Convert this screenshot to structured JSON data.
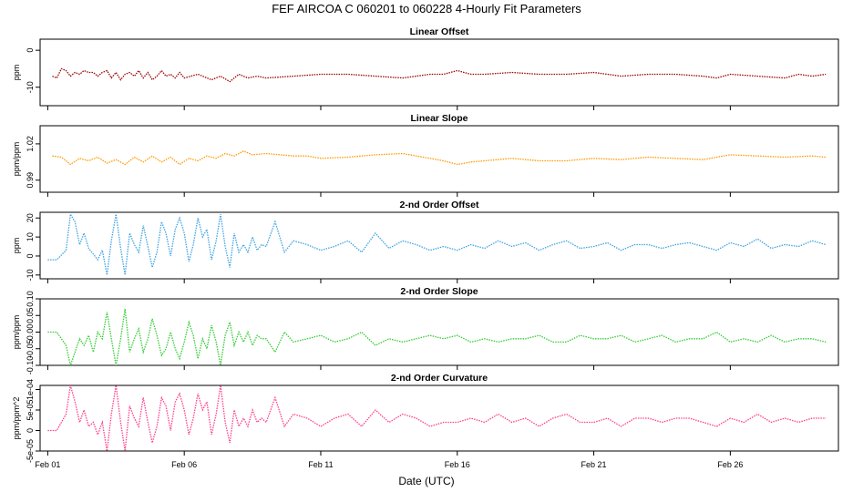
{
  "title": "FEF   AIRCOA C   060201 to 060228   4-Hourly Fit Parameters",
  "xlabel": "Date (UTC)",
  "x_ticks": [
    {
      "label": "Feb 01",
      "day": 1
    },
    {
      "label": "Feb 06",
      "day": 6
    },
    {
      "label": "Feb 11",
      "day": 11
    },
    {
      "label": "Feb 16",
      "day": 16
    },
    {
      "label": "Feb 21",
      "day": 21
    },
    {
      "label": "Feb 26",
      "day": 26
    }
  ],
  "chart_data": [
    {
      "type": "line",
      "title": "Linear Offset",
      "ylabel": "ppm",
      "ylim": [
        -15,
        3
      ],
      "yticks": [
        0,
        -10
      ],
      "ytick_labels": [
        "0",
        "-10"
      ],
      "color": "#9b0000",
      "series": [
        {
          "name": "Linear Offset",
          "x_days": [
            1.17,
            1.33,
            1.5,
            1.67,
            1.83,
            2.0,
            2.17,
            2.33,
            2.5,
            2.67,
            2.83,
            3.0,
            3.17,
            3.33,
            3.5,
            3.67,
            3.83,
            4.0,
            4.17,
            4.33,
            4.5,
            4.67,
            4.83,
            5.0,
            5.17,
            5.33,
            5.5,
            5.67,
            5.83,
            6.0,
            6.5,
            7.0,
            7.33,
            7.67,
            8.0,
            8.33,
            8.67,
            9.0,
            10.0,
            11.0,
            12.0,
            13.0,
            14.0,
            15.0,
            15.5,
            16.0,
            16.5,
            17.0,
            18.0,
            19.0,
            20.0,
            21.0,
            22.0,
            23.0,
            24.0,
            25.0,
            25.5,
            26.0,
            27.0,
            28.0,
            28.5,
            29.0,
            29.5
          ],
          "values": [
            -7,
            -7.5,
            -5,
            -5.5,
            -7,
            -6,
            -6.5,
            -5.5,
            -6,
            -6,
            -7,
            -6,
            -5.5,
            -7.5,
            -6,
            -8,
            -6.5,
            -6,
            -7,
            -5.5,
            -7.5,
            -6,
            -8,
            -7,
            -5.5,
            -7,
            -6.5,
            -7.5,
            -6,
            -7.5,
            -6.5,
            -8,
            -7,
            -8.5,
            -6.5,
            -7.5,
            -7,
            -7.5,
            -7,
            -6.5,
            -6.5,
            -7,
            -7.5,
            -6.5,
            -6.5,
            -5.5,
            -6.5,
            -6.5,
            -6,
            -6.5,
            -6.5,
            -6,
            -7,
            -6.5,
            -6.5,
            -7,
            -7.5,
            -6.5,
            -7,
            -7.5,
            -6.5,
            -7,
            -6.5
          ]
        }
      ]
    },
    {
      "type": "line",
      "title": "Linear Slope",
      "ylabel": "ppm/ppm",
      "ylim": [
        0.98,
        1.035
      ],
      "yticks": [
        0.99,
        1.02
      ],
      "ytick_labels": [
        "0.99",
        "1.02"
      ],
      "color": "#ff9900",
      "series": [
        {
          "name": "Linear Slope",
          "x_days": [
            1.17,
            1.5,
            1.83,
            2.17,
            2.5,
            2.83,
            3.17,
            3.5,
            3.83,
            4.17,
            4.5,
            4.83,
            5.17,
            5.5,
            5.83,
            6.17,
            6.5,
            6.83,
            7.17,
            7.5,
            7.83,
            8.17,
            8.5,
            9.0,
            10.0,
            10.5,
            11.0,
            12.0,
            13.0,
            14.0,
            15.0,
            15.5,
            16.0,
            16.5,
            17.0,
            18.0,
            19.0,
            20.0,
            21.0,
            22.0,
            23.0,
            24.0,
            25.0,
            26.0,
            27.0,
            28.0,
            29.0,
            29.5
          ],
          "values": [
            1.01,
            1.009,
            1.003,
            1.008,
            1.006,
            1.009,
            1.004,
            1.007,
            1.003,
            1.009,
            1.005,
            1.01,
            1.005,
            1.009,
            1.003,
            1.008,
            1.006,
            1.01,
            1.008,
            1.012,
            1.01,
            1.014,
            1.011,
            1.012,
            1.01,
            1.01,
            1.008,
            1.009,
            1.011,
            1.012,
            1.008,
            1.006,
            1.003,
            1.005,
            1.006,
            1.008,
            1.006,
            1.006,
            1.008,
            1.007,
            1.009,
            1.008,
            1.007,
            1.011,
            1.01,
            1.009,
            1.01,
            1.009
          ]
        }
      ]
    },
    {
      "type": "line",
      "title": "2-nd Order Offset",
      "ylabel": "ppm",
      "ylim": [
        -12,
        23
      ],
      "yticks": [
        20,
        10,
        0,
        -10
      ],
      "ytick_labels": [
        "20",
        "10",
        "0",
        "-10"
      ],
      "color": "#3fa3e0",
      "series": [
        {
          "name": "2-nd Order Offset",
          "x_days": [
            1.0,
            1.33,
            1.67,
            1.83,
            2.0,
            2.17,
            2.33,
            2.5,
            2.67,
            2.83,
            3.0,
            3.17,
            3.33,
            3.5,
            3.67,
            3.83,
            4.0,
            4.17,
            4.33,
            4.5,
            4.67,
            4.83,
            5.0,
            5.17,
            5.33,
            5.5,
            5.67,
            5.83,
            6.0,
            6.17,
            6.33,
            6.5,
            6.67,
            6.83,
            7.0,
            7.17,
            7.33,
            7.5,
            7.67,
            7.83,
            8.0,
            8.17,
            8.33,
            8.5,
            8.67,
            8.83,
            9.0,
            9.33,
            9.67,
            10.0,
            10.5,
            11.0,
            11.5,
            12.0,
            12.5,
            13.0,
            13.5,
            14.0,
            14.5,
            15.0,
            15.5,
            16.0,
            16.5,
            17.0,
            17.5,
            18.0,
            18.5,
            19.0,
            19.5,
            20.0,
            20.5,
            21.0,
            21.5,
            22.0,
            22.5,
            23.0,
            23.5,
            24.0,
            24.5,
            25.0,
            25.5,
            26.0,
            26.5,
            27.0,
            27.5,
            28.0,
            28.5,
            29.0,
            29.5
          ],
          "values": [
            -2,
            -2,
            3,
            22,
            18,
            6,
            12,
            4,
            1,
            -2,
            3,
            -10,
            8,
            22,
            4,
            -10,
            12,
            6,
            2,
            16,
            5,
            -6,
            2,
            18,
            12,
            0,
            14,
            20,
            12,
            -3,
            6,
            20,
            10,
            14,
            -2,
            8,
            22,
            5,
            -6,
            12,
            2,
            6,
            2,
            10,
            3,
            6,
            5,
            18,
            2,
            8,
            6,
            3,
            5,
            8,
            2,
            12,
            4,
            8,
            6,
            3,
            5,
            3,
            6,
            4,
            8,
            5,
            7,
            3,
            6,
            8,
            4,
            5,
            7,
            3,
            6,
            6,
            4,
            6,
            7,
            5,
            3,
            7,
            5,
            9,
            4,
            6,
            5,
            8,
            6
          ]
        }
      ]
    },
    {
      "type": "line",
      "title": "2-nd Order Slope",
      "ylabel": "ppm/ppm",
      "ylim": [
        -0.1,
        0.1
      ],
      "yticks": [
        0.1,
        0.05,
        0.0,
        -0.05,
        -0.1
      ],
      "ytick_labels": [
        "0.10",
        "0.05",
        "0.00",
        "-0.05",
        "-0.10"
      ],
      "color": "#33cc33",
      "series": [
        {
          "name": "2-nd Order Slope",
          "x_days": [
            1.0,
            1.33,
            1.67,
            1.83,
            2.0,
            2.17,
            2.33,
            2.5,
            2.67,
            2.83,
            3.0,
            3.17,
            3.33,
            3.5,
            3.67,
            3.83,
            4.0,
            4.17,
            4.33,
            4.5,
            4.67,
            4.83,
            5.0,
            5.17,
            5.33,
            5.5,
            5.67,
            5.83,
            6.0,
            6.17,
            6.33,
            6.5,
            6.67,
            6.83,
            7.0,
            7.17,
            7.33,
            7.5,
            7.67,
            7.83,
            8.0,
            8.17,
            8.33,
            8.5,
            8.67,
            8.83,
            9.0,
            9.33,
            9.67,
            10.0,
            10.5,
            11.0,
            11.5,
            12.0,
            12.5,
            13.0,
            13.5,
            14.0,
            14.5,
            15.0,
            15.5,
            16.0,
            16.5,
            17.0,
            17.5,
            18.0,
            18.5,
            19.0,
            19.5,
            20.0,
            20.5,
            21.0,
            21.5,
            22.0,
            22.5,
            23.0,
            23.5,
            24.0,
            24.5,
            25.0,
            25.5,
            26.0,
            26.5,
            27.0,
            27.5,
            28.0,
            28.5,
            29.0,
            29.5
          ],
          "values": [
            0.0,
            0.0,
            -0.04,
            -0.1,
            -0.06,
            -0.02,
            -0.04,
            -0.01,
            -0.06,
            0.0,
            -0.02,
            0.06,
            -0.02,
            -0.1,
            -0.02,
            0.07,
            -0.06,
            -0.02,
            0.01,
            -0.06,
            -0.02,
            0.04,
            -0.01,
            -0.07,
            -0.05,
            0.0,
            -0.05,
            -0.08,
            -0.03,
            0.03,
            -0.01,
            -0.08,
            -0.02,
            -0.05,
            0.02,
            -0.03,
            -0.1,
            -0.01,
            0.03,
            -0.04,
            0.0,
            -0.03,
            0.0,
            -0.04,
            -0.01,
            -0.02,
            -0.02,
            -0.06,
            0.0,
            -0.03,
            -0.02,
            -0.01,
            -0.03,
            -0.02,
            0.0,
            -0.04,
            -0.02,
            -0.03,
            -0.02,
            -0.01,
            -0.02,
            -0.01,
            -0.03,
            -0.02,
            -0.03,
            -0.02,
            -0.02,
            -0.01,
            -0.03,
            -0.03,
            -0.01,
            -0.02,
            -0.02,
            -0.01,
            -0.03,
            -0.02,
            -0.01,
            -0.03,
            -0.02,
            -0.02,
            0.0,
            -0.03,
            -0.02,
            -0.03,
            -0.01,
            -0.03,
            -0.02,
            -0.02,
            -0.03
          ]
        }
      ]
    },
    {
      "type": "line",
      "title": "2-nd Order Curvature",
      "ylabel": "ppm/ppm^2",
      "ylim": [
        -5e-05,
        0.00011
      ],
      "yticks": [
        0.0001,
        5e-05,
        0,
        -5e-05
      ],
      "ytick_labels": [
        "1e-04",
        "5e-05",
        "0",
        "-5e-05"
      ],
      "color": "#ff3d8b",
      "series": [
        {
          "name": "2-nd Order Curvature",
          "x_days": [
            1.0,
            1.33,
            1.67,
            1.83,
            2.0,
            2.17,
            2.33,
            2.5,
            2.67,
            2.83,
            3.0,
            3.17,
            3.33,
            3.5,
            3.67,
            3.83,
            4.0,
            4.17,
            4.33,
            4.5,
            4.67,
            4.83,
            5.0,
            5.17,
            5.33,
            5.5,
            5.67,
            5.83,
            6.0,
            6.17,
            6.33,
            6.5,
            6.67,
            6.83,
            7.0,
            7.17,
            7.33,
            7.5,
            7.67,
            7.83,
            8.0,
            8.17,
            8.33,
            8.5,
            8.67,
            8.83,
            9.0,
            9.33,
            9.67,
            10.0,
            10.5,
            11.0,
            11.5,
            12.0,
            12.5,
            13.0,
            13.5,
            14.0,
            14.5,
            15.0,
            15.5,
            16.0,
            16.5,
            17.0,
            17.5,
            18.0,
            18.5,
            19.0,
            19.5,
            20.0,
            20.5,
            21.0,
            21.5,
            22.0,
            22.5,
            23.0,
            23.5,
            24.0,
            24.5,
            25.0,
            25.5,
            26.0,
            26.5,
            27.0,
            27.5,
            28.0,
            28.5,
            29.0,
            29.5
          ],
          "values": [
            0.0,
            0.0,
            4e-05,
            0.00011,
            7e-05,
            2e-05,
            5e-05,
            1e-05,
            2e-05,
            -1e-05,
            2e-05,
            -5e-05,
            4e-05,
            0.00011,
            2e-05,
            -5e-05,
            6e-05,
            3e-05,
            1e-05,
            8e-05,
            2e-05,
            -3e-05,
            1e-05,
            8e-05,
            6e-05,
            0.0,
            7e-05,
            9e-05,
            5e-05,
            -1e-05,
            3e-05,
            9e-05,
            5e-05,
            7e-05,
            -1e-05,
            4e-05,
            0.00011,
            2e-05,
            -3e-05,
            5e-05,
            1e-05,
            3e-05,
            1e-05,
            5e-05,
            2e-05,
            3e-05,
            2e-05,
            8e-05,
            1e-05,
            4e-05,
            3e-05,
            1e-05,
            3e-05,
            4e-05,
            1e-05,
            5e-05,
            2e-05,
            4e-05,
            3e-05,
            1e-05,
            2e-05,
            2e-05,
            3e-05,
            2e-05,
            4e-05,
            2e-05,
            3e-05,
            1e-05,
            3e-05,
            4e-05,
            2e-05,
            2e-05,
            3e-05,
            1e-05,
            3e-05,
            3e-05,
            2e-05,
            3e-05,
            3e-05,
            2e-05,
            1e-05,
            3e-05,
            2e-05,
            4e-05,
            2e-05,
            3e-05,
            2e-05,
            3e-05,
            3e-05
          ]
        }
      ]
    }
  ]
}
